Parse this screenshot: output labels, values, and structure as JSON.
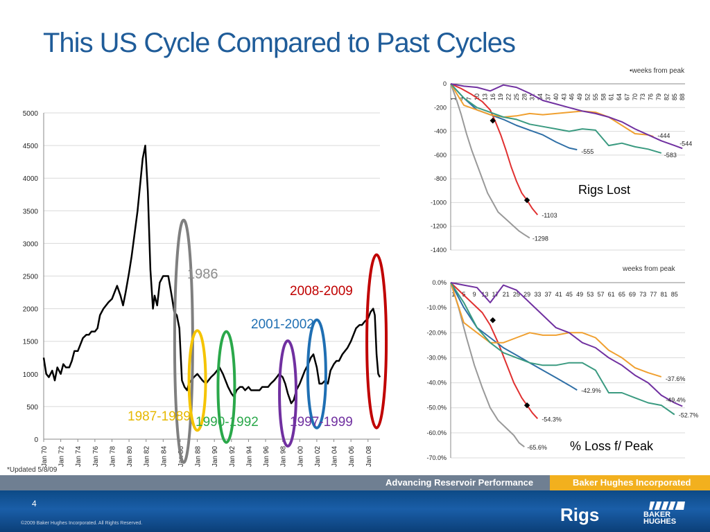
{
  "slide": {
    "title": "This US Cycle Compared to Past Cycles",
    "updated_note": "*Updated 5/8/09",
    "page_number": "4",
    "section_label": "Rigs",
    "copyright": "©2009 Baker Hughes Incorporated. All Rights Reserved.",
    "footer_left": "Advancing Reservoir Performance",
    "footer_right": "Baker Hughes Incorporated",
    "logo_text_line1": "BAKER",
    "logo_text_line2": "HUGHES"
  },
  "colors": {
    "title": "#1f5c99",
    "series_black": "#000000",
    "circle_1986": "#7f7f7f",
    "circle_1987_1989": "#f5c400",
    "circle_1990_1992": "#2aa84a",
    "circle_1997_1999": "#7030a0",
    "circle_2001_2002": "#1f6fb3",
    "circle_2008_2009": "#c00000",
    "cycle_gray": "#999999",
    "cycle_red": "#e03030",
    "cycle_blue": "#2f6fa6",
    "cycle_orange": "#f0a030",
    "cycle_green": "#3a9a80",
    "cycle_purple": "#7030a0"
  },
  "chart_data": [
    {
      "type": "line",
      "id": "rig-count-history",
      "title": "",
      "xlabel": "",
      "ylabel": "",
      "ylim": [
        0,
        5000
      ],
      "yticks": [
        0,
        500,
        1000,
        1500,
        2000,
        2500,
        3000,
        3500,
        4000,
        4500,
        5000
      ],
      "xticks": [
        "Jan 70",
        "Jan 72",
        "Jan 74",
        "Jan 76",
        "Jan 78",
        "Jan 80",
        "Jan 82",
        "Jan 84",
        "Jan 86",
        "Jan 88",
        "Jan 90",
        "Jan 92",
        "Jan 94",
        "Jan 96",
        "Jan 98",
        "Jan 00",
        "Jan 02",
        "Jan 04",
        "Jan 06",
        "Jan 08"
      ],
      "xrange": [
        1970.0,
        2009.4
      ],
      "series": [
        {
          "x": [
            1970.0,
            1970.3,
            1970.6,
            1971.0,
            1971.3,
            1971.6,
            1972.0,
            1972.3,
            1972.6,
            1973.0,
            1973.3,
            1973.6,
            1974.0,
            1974.3,
            1974.6,
            1975.0,
            1975.3,
            1975.6,
            1976.0,
            1976.3,
            1976.6,
            1977.0,
            1977.3,
            1977.6,
            1978.0,
            1978.3,
            1978.6,
            1979.0,
            1979.3,
            1979.6,
            1980.0,
            1980.3,
            1980.6,
            1981.0,
            1981.3,
            1981.6,
            1981.9,
            1982.2,
            1982.5,
            1982.8,
            1983.0,
            1983.3,
            1983.6,
            1984.0,
            1984.3,
            1984.6,
            1985.0,
            1985.3,
            1985.6,
            1985.9,
            1986.2,
            1986.5,
            1986.8,
            1987.0,
            1987.3,
            1987.6,
            1988.0,
            1988.3,
            1988.6,
            1989.0,
            1989.3,
            1989.6,
            1990.0,
            1990.3,
            1990.6,
            1991.0,
            1991.3,
            1991.6,
            1992.0,
            1992.3,
            1992.6,
            1993.0,
            1993.3,
            1993.6,
            1994.0,
            1994.3,
            1994.6,
            1995.0,
            1995.3,
            1995.6,
            1996.0,
            1996.3,
            1996.6,
            1997.0,
            1997.3,
            1997.6,
            1998.0,
            1998.3,
            1998.6,
            1999.0,
            1999.3,
            1999.6,
            2000.0,
            2000.3,
            2000.6,
            2001.0,
            2001.3,
            2001.6,
            2002.0,
            2002.3,
            2002.6,
            2003.0,
            2003.3,
            2003.6,
            2004.0,
            2004.3,
            2004.6,
            2005.0,
            2005.3,
            2005.6,
            2006.0,
            2006.3,
            2006.6,
            2007.0,
            2007.3,
            2007.6,
            2008.0,
            2008.3,
            2008.6,
            2008.8,
            2009.0,
            2009.2,
            2009.4
          ],
          "values": [
            1250,
            1000,
            950,
            1050,
            900,
            1100,
            1000,
            1150,
            1100,
            1100,
            1200,
            1350,
            1350,
            1450,
            1550,
            1600,
            1600,
            1650,
            1650,
            1700,
            1900,
            2000,
            2050,
            2100,
            2150,
            2250,
            2350,
            2200,
            2050,
            2250,
            2550,
            2800,
            3100,
            3500,
            3900,
            4300,
            4500,
            3800,
            2600,
            2000,
            2200,
            2050,
            2400,
            2500,
            2500,
            2500,
            2200,
            1950,
            1900,
            1700,
            900,
            800,
            750,
            850,
            900,
            950,
            1000,
            950,
            900,
            850,
            900,
            950,
            1000,
            1050,
            1100,
            1000,
            900,
            800,
            700,
            650,
            750,
            800,
            800,
            750,
            800,
            750,
            750,
            750,
            750,
            800,
            800,
            800,
            850,
            900,
            950,
            1000,
            950,
            850,
            700,
            550,
            600,
            750,
            850,
            950,
            1050,
            1150,
            1250,
            1300,
            1100,
            850,
            850,
            900,
            850,
            1050,
            1150,
            1200,
            1200,
            1300,
            1350,
            1400,
            1500,
            1600,
            1700,
            1750,
            1750,
            1800,
            1850,
            1950,
            2000,
            1900,
            1300,
            1000,
            950
          ]
        }
      ],
      "annotations": [
        {
          "label": "1986",
          "color": "#7f7f7f"
        },
        {
          "label": "1987-1989",
          "color": "#f5c400"
        },
        {
          "label": "1990-1992",
          "color": "#2aa84a"
        },
        {
          "label": "1997-1999",
          "color": "#7030a0"
        },
        {
          "label": "2001-2002",
          "color": "#1f6fb3"
        },
        {
          "label": "2008-2009",
          "color": "#c00000"
        }
      ]
    },
    {
      "type": "line",
      "id": "rigs-lost",
      "title": "Rigs Lost",
      "xlabel": "•weeks from peak",
      "ylabel": "",
      "ylim": [
        -1400,
        0
      ],
      "yticks": [
        0,
        -200,
        -400,
        -600,
        -800,
        -1000,
        -1200,
        -1400
      ],
      "xrange": [
        0,
        89
      ],
      "xticks": [
        1,
        4,
        7,
        10,
        13,
        16,
        19,
        22,
        25,
        28,
        31,
        34,
        37,
        40,
        43,
        46,
        49,
        52,
        55,
        58,
        61,
        64,
        67,
        70,
        73,
        76,
        79,
        82,
        85,
        88
      ],
      "series": [
        {
          "color": "#999999",
          "end_label": "-1298",
          "x": [
            0,
            2,
            4,
            6,
            8,
            10,
            12,
            14,
            16,
            18,
            20,
            22,
            24,
            26,
            28,
            30
          ],
          "values": [
            0,
            -120,
            -260,
            -420,
            -560,
            -680,
            -800,
            -920,
            -1000,
            -1080,
            -1120,
            -1160,
            -1200,
            -1240,
            -1270,
            -1298
          ]
        },
        {
          "color": "#e03030",
          "end_label": "-1103",
          "marker": {
            "x": 29,
            "y": -980
          },
          "x": [
            0,
            4,
            8,
            12,
            15,
            17,
            19,
            21,
            23,
            25,
            27,
            29,
            31,
            33
          ],
          "values": [
            0,
            -40,
            -90,
            -150,
            -220,
            -320,
            -430,
            -560,
            -700,
            -820,
            -920,
            -980,
            -1050,
            -1103
          ]
        },
        {
          "color": "#2f6fa6",
          "end_label": "-555",
          "x": [
            0,
            5,
            10,
            15,
            20,
            25,
            30,
            35,
            40,
            45,
            48
          ],
          "values": [
            0,
            -120,
            -220,
            -260,
            -300,
            -350,
            -390,
            -430,
            -490,
            -540,
            -555
          ]
        },
        {
          "color": "#f0a030",
          "end_label": "-444",
          "x": [
            0,
            5,
            10,
            15,
            20,
            25,
            30,
            35,
            40,
            45,
            50,
            55,
            60,
            65,
            70,
            75,
            77
          ],
          "values": [
            0,
            -180,
            -220,
            -260,
            -280,
            -270,
            -250,
            -260,
            -250,
            -240,
            -230,
            -240,
            -280,
            -350,
            -420,
            -430,
            -444
          ]
        },
        {
          "color": "#3a9a80",
          "end_label": "-583",
          "x": [
            0,
            5,
            10,
            15,
            20,
            25,
            30,
            35,
            40,
            45,
            50,
            55,
            60,
            65,
            70,
            75,
            80
          ],
          "values": [
            0,
            -120,
            -200,
            -240,
            -280,
            -300,
            -340,
            -360,
            -380,
            -400,
            -380,
            -390,
            -520,
            -500,
            -530,
            -550,
            -583
          ]
        },
        {
          "color": "#7030a0",
          "end_label": "-544",
          "marker": {
            "x": 16,
            "y": -310
          },
          "x": [
            0,
            5,
            10,
            15,
            20,
            25,
            30,
            35,
            40,
            45,
            50,
            55,
            60,
            65,
            70,
            75,
            80,
            85,
            88
          ],
          "values": [
            0,
            -20,
            -30,
            -60,
            -10,
            -30,
            -80,
            -140,
            -170,
            -200,
            -230,
            -250,
            -280,
            -320,
            -380,
            -430,
            -480,
            -520,
            -544
          ]
        }
      ]
    },
    {
      "type": "line",
      "id": "loss-from-peak",
      "title": "% Loss f/ Peak",
      "xlabel": "weeks from peak",
      "ylabel": "",
      "ylim": [
        -70,
        0
      ],
      "yticks": [
        "0.0%",
        "-10.0%",
        "-20.0%",
        "-30.0%",
        "-40.0%",
        "-50.0%",
        "-60.0%",
        "-70.0%"
      ],
      "xrange": [
        0,
        89
      ],
      "xticks": [
        1,
        5,
        9,
        13,
        17,
        21,
        25,
        29,
        33,
        37,
        41,
        45,
        49,
        53,
        57,
        61,
        65,
        69,
        73,
        77,
        81,
        85
      ],
      "series": [
        {
          "color": "#999999",
          "end_label": "-65.6%",
          "x": [
            0,
            3,
            6,
            9,
            12,
            15,
            18,
            21,
            24,
            26,
            28
          ],
          "values": [
            0,
            -10,
            -22,
            -33,
            -42,
            -50,
            -55,
            -58,
            -61,
            -64,
            -65.6
          ]
        },
        {
          "color": "#e03030",
          "end_label": "-54.3%",
          "marker": {
            "x": 29,
            "y": -49
          },
          "x": [
            0,
            4,
            8,
            12,
            15,
            18,
            21,
            24,
            27,
            29,
            31,
            33
          ],
          "values": [
            0,
            -4,
            -8,
            -12,
            -17,
            -24,
            -32,
            -40,
            -46,
            -49,
            -52,
            -54.3
          ]
        },
        {
          "color": "#2f6fa6",
          "end_label": "-42.9%",
          "x": [
            0,
            5,
            10,
            15,
            20,
            25,
            30,
            35,
            40,
            45,
            48
          ],
          "values": [
            0,
            -10,
            -18,
            -22,
            -26,
            -29,
            -32,
            -35,
            -38,
            -41,
            -42.9
          ]
        },
        {
          "color": "#f0a030",
          "end_label": "-37.6%",
          "x": [
            0,
            5,
            10,
            15,
            20,
            25,
            30,
            35,
            40,
            45,
            50,
            55,
            60,
            65,
            70,
            75,
            80
          ],
          "values": [
            0,
            -16,
            -20,
            -24,
            -24,
            -22,
            -20,
            -21,
            -21,
            -20,
            -20,
            -22,
            -27,
            -30,
            -34,
            -36,
            -37.6
          ]
        },
        {
          "color": "#3a9a80",
          "end_label": "-52.7%",
          "x": [
            0,
            5,
            10,
            15,
            20,
            25,
            30,
            35,
            40,
            45,
            50,
            55,
            60,
            65,
            70,
            75,
            80,
            85
          ],
          "values": [
            0,
            -8,
            -18,
            -24,
            -28,
            -30,
            -32,
            -33,
            -33,
            -32,
            -32,
            -35,
            -44,
            -44,
            -46,
            -48,
            -49,
            -52.7
          ]
        },
        {
          "color": "#7030a0",
          "end_label": "-49.4%",
          "marker": {
            "x": 16,
            "y": -15
          },
          "x": [
            0,
            5,
            10,
            15,
            20,
            25,
            30,
            35,
            40,
            45,
            50,
            55,
            60,
            65,
            70,
            75,
            80,
            85,
            88
          ],
          "values": [
            0,
            -1,
            -2,
            -8,
            -1,
            -3,
            -8,
            -13,
            -18,
            -20,
            -24,
            -26,
            -30,
            -33,
            -37,
            -40,
            -45,
            -48,
            -49.4
          ]
        }
      ]
    }
  ]
}
